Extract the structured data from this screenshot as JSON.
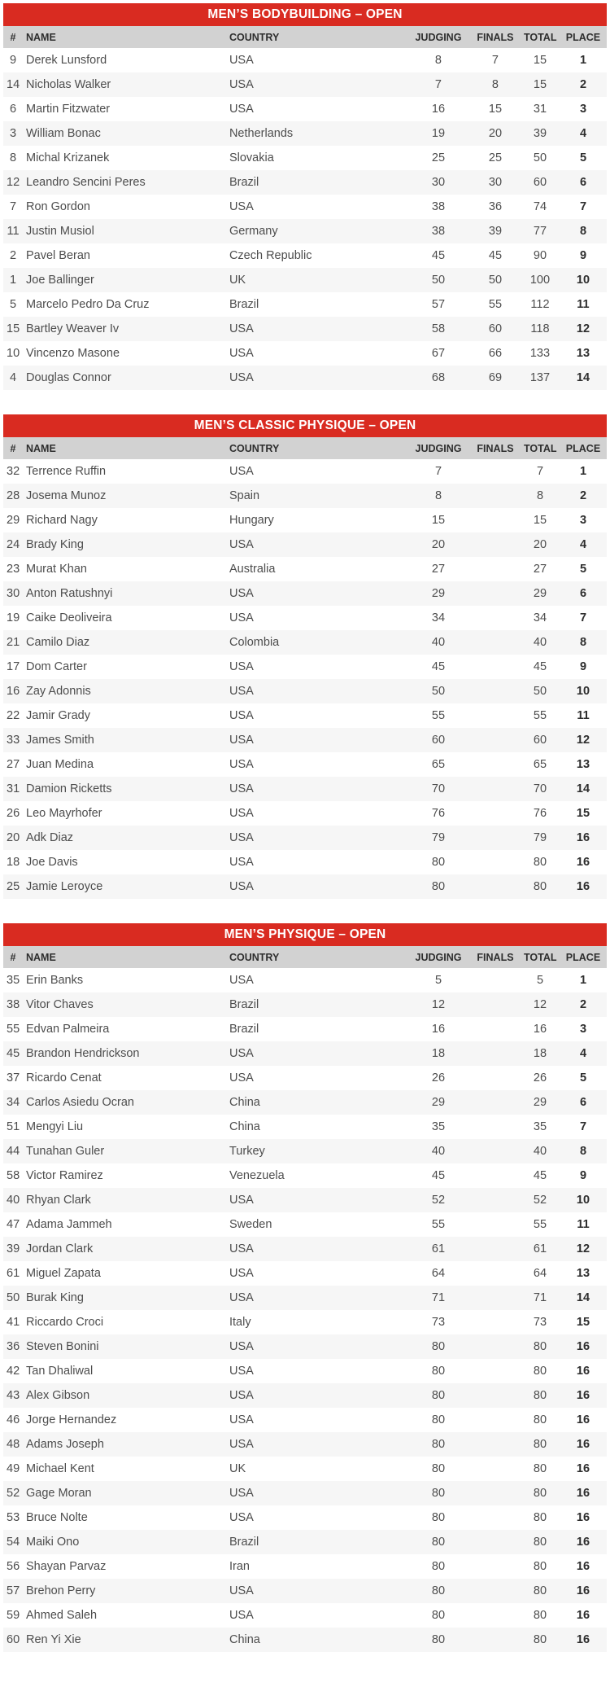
{
  "colors": {
    "title_bar_red": "#d92b21",
    "title_text": "#ffffff",
    "column_header_gray": "#d2d2d2",
    "column_header_text": "#2e2e2e",
    "row_alt_gray": "#f6f6f6",
    "row_text": "#4d4d4d",
    "place_text": "#2e2e2e"
  },
  "columns": [
    "#",
    "NAME",
    "COUNTRY",
    "JUDGING",
    "FINALS",
    "TOTAL",
    "PLACE"
  ],
  "tables": [
    {
      "title": "MEN’S BODYBUILDING – OPEN",
      "rows": [
        {
          "num": "9",
          "name": "Derek Lunsford",
          "country": "USA",
          "judging": "8",
          "finals": "7",
          "total": "15",
          "place": "1"
        },
        {
          "num": "14",
          "name": "Nicholas Walker",
          "country": "USA",
          "judging": "7",
          "finals": "8",
          "total": "15",
          "place": "2"
        },
        {
          "num": "6",
          "name": "Martin Fitzwater",
          "country": "USA",
          "judging": "16",
          "finals": "15",
          "total": "31",
          "place": "3"
        },
        {
          "num": "3",
          "name": "William Bonac",
          "country": "Netherlands",
          "judging": "19",
          "finals": "20",
          "total": "39",
          "place": "4"
        },
        {
          "num": "8",
          "name": "Michal Krizanek",
          "country": "Slovakia",
          "judging": "25",
          "finals": "25",
          "total": "50",
          "place": "5"
        },
        {
          "num": "12",
          "name": "Leandro Sencini Peres",
          "country": "Brazil",
          "judging": "30",
          "finals": "30",
          "total": "60",
          "place": "6"
        },
        {
          "num": "7",
          "name": "Ron Gordon",
          "country": "USA",
          "judging": "38",
          "finals": "36",
          "total": "74",
          "place": "7"
        },
        {
          "num": "11",
          "name": "Justin Musiol",
          "country": "Germany",
          "judging": "38",
          "finals": "39",
          "total": "77",
          "place": "8"
        },
        {
          "num": "2",
          "name": "Pavel Beran",
          "country": "Czech Republic",
          "judging": "45",
          "finals": "45",
          "total": "90",
          "place": "9"
        },
        {
          "num": "1",
          "name": "Joe Ballinger",
          "country": "UK",
          "judging": "50",
          "finals": "50",
          "total": "100",
          "place": "10"
        },
        {
          "num": "5",
          "name": "Marcelo Pedro Da Cruz",
          "country": "Brazil",
          "judging": "57",
          "finals": "55",
          "total": "112",
          "place": "11"
        },
        {
          "num": "15",
          "name": "Bartley Weaver Iv",
          "country": "USA",
          "judging": "58",
          "finals": "60",
          "total": "118",
          "place": "12"
        },
        {
          "num": "10",
          "name": "Vincenzo Masone",
          "country": "USA",
          "judging": "67",
          "finals": "66",
          "total": "133",
          "place": "13"
        },
        {
          "num": "4",
          "name": "Douglas Connor",
          "country": "USA",
          "judging": "68",
          "finals": "69",
          "total": "137",
          "place": "14"
        }
      ]
    },
    {
      "title": "MEN’S CLASSIC PHYSIQUE – OPEN",
      "rows": [
        {
          "num": "32",
          "name": "Terrence Ruffin",
          "country": "USA",
          "judging": "7",
          "finals": "",
          "total": "7",
          "place": "1"
        },
        {
          "num": "28",
          "name": "Josema Munoz",
          "country": "Spain",
          "judging": "8",
          "finals": "",
          "total": "8",
          "place": "2"
        },
        {
          "num": "29",
          "name": "Richard Nagy",
          "country": "Hungary",
          "judging": "15",
          "finals": "",
          "total": "15",
          "place": "3"
        },
        {
          "num": "24",
          "name": "Brady King",
          "country": "USA",
          "judging": "20",
          "finals": "",
          "total": "20",
          "place": "4"
        },
        {
          "num": "23",
          "name": "Murat Khan",
          "country": "Australia",
          "judging": "27",
          "finals": "",
          "total": "27",
          "place": "5"
        },
        {
          "num": "30",
          "name": "Anton Ratushnyi",
          "country": "USA",
          "judging": "29",
          "finals": "",
          "total": "29",
          "place": "6"
        },
        {
          "num": "19",
          "name": "Caike Deoliveira",
          "country": "USA",
          "judging": "34",
          "finals": "",
          "total": "34",
          "place": "7"
        },
        {
          "num": "21",
          "name": "Camilo Diaz",
          "country": "Colombia",
          "judging": "40",
          "finals": "",
          "total": "40",
          "place": "8"
        },
        {
          "num": "17",
          "name": "Dom Carter",
          "country": "USA",
          "judging": "45",
          "finals": "",
          "total": "45",
          "place": "9"
        },
        {
          "num": "16",
          "name": "Zay Adonnis",
          "country": "USA",
          "judging": "50",
          "finals": "",
          "total": "50",
          "place": "10"
        },
        {
          "num": "22",
          "name": "Jamir Grady",
          "country": "USA",
          "judging": "55",
          "finals": "",
          "total": "55",
          "place": "11"
        },
        {
          "num": "33",
          "name": "James Smith",
          "country": "USA",
          "judging": "60",
          "finals": "",
          "total": "60",
          "place": "12"
        },
        {
          "num": "27",
          "name": "Juan Medina",
          "country": "USA",
          "judging": "65",
          "finals": "",
          "total": "65",
          "place": "13"
        },
        {
          "num": "31",
          "name": "Damion Ricketts",
          "country": "USA",
          "judging": "70",
          "finals": "",
          "total": "70",
          "place": "14"
        },
        {
          "num": "26",
          "name": "Leo Mayrhofer",
          "country": "USA",
          "judging": "76",
          "finals": "",
          "total": "76",
          "place": "15"
        },
        {
          "num": "20",
          "name": "Adk Diaz",
          "country": "USA",
          "judging": "79",
          "finals": "",
          "total": "79",
          "place": "16"
        },
        {
          "num": "18",
          "name": "Joe Davis",
          "country": "USA",
          "judging": "80",
          "finals": "",
          "total": "80",
          "place": "16"
        },
        {
          "num": "25",
          "name": "Jamie Leroyce",
          "country": "USA",
          "judging": "80",
          "finals": "",
          "total": "80",
          "place": "16"
        }
      ]
    },
    {
      "title": "MEN’S PHYSIQUE – OPEN",
      "rows": [
        {
          "num": "35",
          "name": "Erin Banks",
          "country": "USA",
          "judging": "5",
          "finals": "",
          "total": "5",
          "place": "1"
        },
        {
          "num": "38",
          "name": "Vitor Chaves",
          "country": "Brazil",
          "judging": "12",
          "finals": "",
          "total": "12",
          "place": "2"
        },
        {
          "num": "55",
          "name": "Edvan Palmeira",
          "country": "Brazil",
          "judging": "16",
          "finals": "",
          "total": "16",
          "place": "3"
        },
        {
          "num": "45",
          "name": "Brandon Hendrickson",
          "country": "USA",
          "judging": "18",
          "finals": "",
          "total": "18",
          "place": "4"
        },
        {
          "num": "37",
          "name": "Ricardo Cenat",
          "country": "USA",
          "judging": "26",
          "finals": "",
          "total": "26",
          "place": "5"
        },
        {
          "num": "34",
          "name": "Carlos Asiedu Ocran",
          "country": "China",
          "judging": "29",
          "finals": "",
          "total": "29",
          "place": "6"
        },
        {
          "num": "51",
          "name": "Mengyi Liu",
          "country": "China",
          "judging": "35",
          "finals": "",
          "total": "35",
          "place": "7"
        },
        {
          "num": "44",
          "name": "Tunahan Guler",
          "country": "Turkey",
          "judging": "40",
          "finals": "",
          "total": "40",
          "place": "8"
        },
        {
          "num": "58",
          "name": "Victor Ramirez",
          "country": "Venezuela",
          "judging": "45",
          "finals": "",
          "total": "45",
          "place": "9"
        },
        {
          "num": "40",
          "name": "Rhyan Clark",
          "country": "USA",
          "judging": "52",
          "finals": "",
          "total": "52",
          "place": "10"
        },
        {
          "num": "47",
          "name": "Adama Jammeh",
          "country": "Sweden",
          "judging": "55",
          "finals": "",
          "total": "55",
          "place": "11"
        },
        {
          "num": "39",
          "name": "Jordan Clark",
          "country": "USA",
          "judging": "61",
          "finals": "",
          "total": "61",
          "place": "12"
        },
        {
          "num": "61",
          "name": "Miguel Zapata",
          "country": "USA",
          "judging": "64",
          "finals": "",
          "total": "64",
          "place": "13"
        },
        {
          "num": "50",
          "name": "Burak King",
          "country": "USA",
          "judging": "71",
          "finals": "",
          "total": "71",
          "place": "14"
        },
        {
          "num": "41",
          "name": "Riccardo Croci",
          "country": "Italy",
          "judging": "73",
          "finals": "",
          "total": "73",
          "place": "15"
        },
        {
          "num": "36",
          "name": "Steven Bonini",
          "country": "USA",
          "judging": "80",
          "finals": "",
          "total": "80",
          "place": "16"
        },
        {
          "num": "42",
          "name": "Tan Dhaliwal",
          "country": "USA",
          "judging": "80",
          "finals": "",
          "total": "80",
          "place": "16"
        },
        {
          "num": "43",
          "name": "Alex Gibson",
          "country": "USA",
          "judging": "80",
          "finals": "",
          "total": "80",
          "place": "16"
        },
        {
          "num": "46",
          "name": "Jorge Hernandez",
          "country": "USA",
          "judging": "80",
          "finals": "",
          "total": "80",
          "place": "16"
        },
        {
          "num": "48",
          "name": "Adams Joseph",
          "country": "USA",
          "judging": "80",
          "finals": "",
          "total": "80",
          "place": "16"
        },
        {
          "num": "49",
          "name": "Michael Kent",
          "country": "UK",
          "judging": "80",
          "finals": "",
          "total": "80",
          "place": "16"
        },
        {
          "num": "52",
          "name": "Gage Moran",
          "country": "USA",
          "judging": "80",
          "finals": "",
          "total": "80",
          "place": "16"
        },
        {
          "num": "53",
          "name": "Bruce Nolte",
          "country": "USA",
          "judging": "80",
          "finals": "",
          "total": "80",
          "place": "16"
        },
        {
          "num": "54",
          "name": "Maiki Ono",
          "country": "Brazil",
          "judging": "80",
          "finals": "",
          "total": "80",
          "place": "16"
        },
        {
          "num": "56",
          "name": "Shayan Parvaz",
          "country": "Iran",
          "judging": "80",
          "finals": "",
          "total": "80",
          "place": "16"
        },
        {
          "num": "57",
          "name": "Brehon Perry",
          "country": "USA",
          "judging": "80",
          "finals": "",
          "total": "80",
          "place": "16"
        },
        {
          "num": "59",
          "name": "Ahmed Saleh",
          "country": "USA",
          "judging": "80",
          "finals": "",
          "total": "80",
          "place": "16"
        },
        {
          "num": "60",
          "name": "Ren Yi Xie",
          "country": "China",
          "judging": "80",
          "finals": "",
          "total": "80",
          "place": "16"
        }
      ]
    }
  ]
}
